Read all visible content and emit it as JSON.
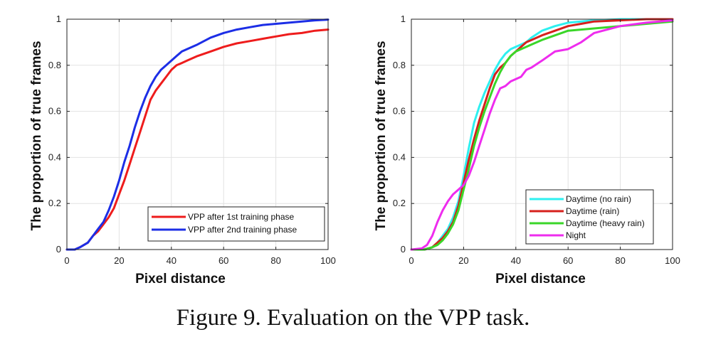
{
  "caption": "Figure 9. Evaluation on the VPP task.",
  "chart_data": [
    {
      "type": "line",
      "xlabel": "Pixel distance",
      "ylabel": "The proportion of true frames",
      "xlim": [
        0,
        100
      ],
      "ylim": [
        0,
        1
      ],
      "xticks": [
        0,
        20,
        40,
        60,
        80,
        100
      ],
      "yticks": [
        0,
        0.2,
        0.4,
        0.6,
        0.8,
        1
      ],
      "ytick_labels": [
        "0",
        "0.2",
        "0.4",
        "0.6",
        "0.8",
        "1"
      ],
      "grid": true,
      "legend_position": "bottom-right",
      "series": [
        {
          "name": "VPP after 1st training phase",
          "color": "#ee1c1c",
          "x": [
            0,
            3,
            5,
            8,
            10,
            12,
            14,
            16,
            18,
            20,
            22,
            24,
            26,
            28,
            30,
            32,
            34,
            36,
            38,
            40,
            42,
            44,
            46,
            50,
            55,
            60,
            65,
            70,
            75,
            80,
            85,
            90,
            95,
            100
          ],
          "y": [
            0,
            0,
            0.01,
            0.03,
            0.06,
            0.08,
            0.11,
            0.14,
            0.18,
            0.24,
            0.3,
            0.37,
            0.44,
            0.51,
            0.58,
            0.65,
            0.69,
            0.72,
            0.75,
            0.78,
            0.8,
            0.81,
            0.82,
            0.84,
            0.86,
            0.88,
            0.895,
            0.905,
            0.915,
            0.925,
            0.935,
            0.94,
            0.95,
            0.955
          ]
        },
        {
          "name": "VPP after 2nd training phase",
          "color": "#1c2ee6",
          "x": [
            0,
            3,
            5,
            8,
            10,
            12,
            14,
            16,
            18,
            20,
            22,
            24,
            26,
            28,
            30,
            32,
            34,
            36,
            38,
            40,
            42,
            44,
            46,
            50,
            55,
            60,
            65,
            70,
            75,
            80,
            85,
            90,
            95,
            100
          ],
          "y": [
            0,
            0,
            0.01,
            0.03,
            0.06,
            0.09,
            0.12,
            0.17,
            0.23,
            0.3,
            0.38,
            0.45,
            0.53,
            0.6,
            0.66,
            0.71,
            0.75,
            0.78,
            0.8,
            0.82,
            0.84,
            0.86,
            0.87,
            0.89,
            0.92,
            0.94,
            0.955,
            0.965,
            0.975,
            0.98,
            0.985,
            0.99,
            0.995,
            0.998
          ]
        }
      ]
    },
    {
      "type": "line",
      "xlabel": "Pixel distance",
      "ylabel": "The proportion of true frames",
      "xlim": [
        0,
        100
      ],
      "ylim": [
        0,
        1
      ],
      "xticks": [
        0,
        20,
        40,
        60,
        80,
        100
      ],
      "yticks": [
        0,
        0.2,
        0.4,
        0.6,
        0.8,
        1
      ],
      "ytick_labels": [
        "0",
        "0.2",
        "0.4",
        "0.6",
        "0.8",
        "1"
      ],
      "grid": true,
      "legend_position": "bottom-right",
      "series": [
        {
          "name": "Daytime (no rain)",
          "color": "#2ef0f0",
          "x": [
            0,
            5,
            8,
            10,
            12,
            14,
            16,
            18,
            20,
            22,
            24,
            26,
            28,
            30,
            32,
            34,
            36,
            38,
            40,
            42,
            44,
            46,
            50,
            55,
            60,
            65,
            70,
            80,
            90,
            100
          ],
          "y": [
            0,
            0,
            0.01,
            0.03,
            0.06,
            0.09,
            0.14,
            0.21,
            0.32,
            0.44,
            0.55,
            0.62,
            0.68,
            0.73,
            0.78,
            0.82,
            0.85,
            0.87,
            0.88,
            0.89,
            0.9,
            0.92,
            0.95,
            0.97,
            0.985,
            0.99,
            0.995,
            1.0,
            1.0,
            1.0
          ]
        },
        {
          "name": "Daytime (rain)",
          "color": "#d6201c",
          "x": [
            0,
            5,
            8,
            10,
            12,
            14,
            16,
            18,
            20,
            22,
            24,
            26,
            28,
            30,
            32,
            34,
            36,
            38,
            40,
            42,
            44,
            46,
            50,
            55,
            60,
            65,
            70,
            80,
            90,
            100
          ],
          "y": [
            0,
            0,
            0.01,
            0.03,
            0.05,
            0.08,
            0.12,
            0.19,
            0.29,
            0.39,
            0.48,
            0.56,
            0.63,
            0.7,
            0.76,
            0.79,
            0.81,
            0.84,
            0.86,
            0.88,
            0.9,
            0.91,
            0.93,
            0.95,
            0.97,
            0.98,
            0.99,
            0.995,
            1.0,
            1.0
          ]
        },
        {
          "name": "Daytime (heavy rain)",
          "color": "#3ad628",
          "x": [
            0,
            5,
            8,
            10,
            12,
            14,
            16,
            18,
            20,
            22,
            24,
            26,
            28,
            30,
            32,
            34,
            36,
            38,
            40,
            42,
            44,
            46,
            50,
            55,
            60,
            65,
            70,
            80,
            90,
            100
          ],
          "y": [
            0,
            0,
            0.01,
            0.02,
            0.04,
            0.07,
            0.11,
            0.17,
            0.26,
            0.35,
            0.45,
            0.53,
            0.6,
            0.66,
            0.72,
            0.77,
            0.81,
            0.84,
            0.86,
            0.87,
            0.88,
            0.89,
            0.91,
            0.93,
            0.95,
            0.955,
            0.96,
            0.97,
            0.98,
            0.99
          ]
        },
        {
          "name": "Night",
          "color": "#ee2cee",
          "x": [
            0,
            4,
            6,
            8,
            10,
            12,
            14,
            16,
            18,
            20,
            22,
            24,
            26,
            28,
            30,
            32,
            34,
            36,
            38,
            40,
            42,
            44,
            46,
            50,
            55,
            60,
            65,
            70,
            80,
            90,
            100
          ],
          "y": [
            0,
            0.005,
            0.02,
            0.06,
            0.12,
            0.17,
            0.21,
            0.24,
            0.26,
            0.28,
            0.32,
            0.38,
            0.45,
            0.52,
            0.59,
            0.65,
            0.7,
            0.71,
            0.73,
            0.74,
            0.75,
            0.78,
            0.79,
            0.82,
            0.86,
            0.87,
            0.9,
            0.94,
            0.97,
            0.985,
            0.995
          ]
        }
      ]
    }
  ]
}
